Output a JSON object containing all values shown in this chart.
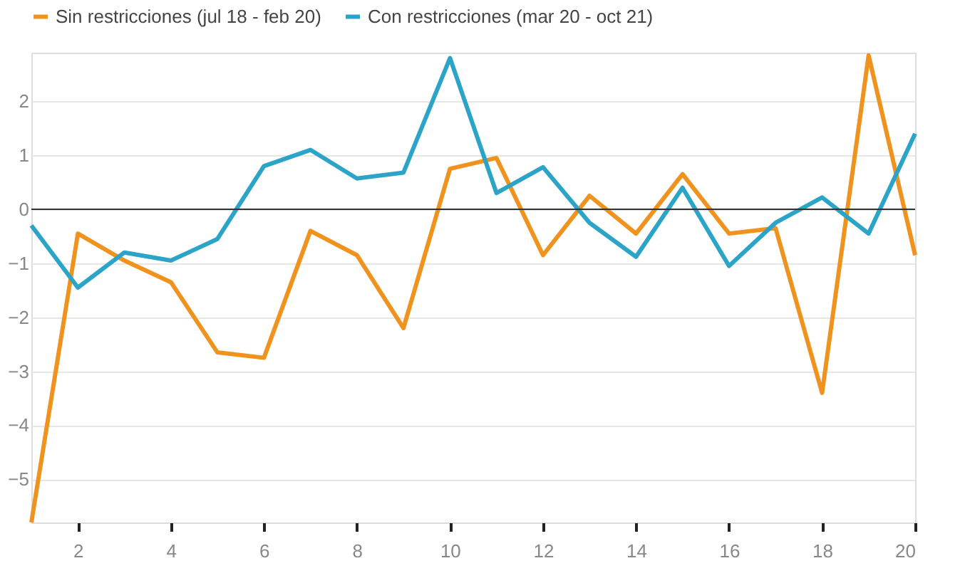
{
  "chart_data": {
    "type": "line",
    "x": [
      1,
      2,
      3,
      4,
      5,
      6,
      7,
      8,
      9,
      10,
      11,
      12,
      13,
      14,
      15,
      16,
      17,
      18,
      19,
      20
    ],
    "series": [
      {
        "name": "Sin restricciones (jul 18 - feb 20)",
        "color": "#f0931e",
        "values": [
          -5.8,
          -0.45,
          -0.95,
          -1.35,
          -2.65,
          -2.75,
          -0.4,
          -0.85,
          -2.2,
          0.75,
          0.95,
          -0.85,
          0.25,
          -0.45,
          0.65,
          -0.45,
          -0.35,
          -3.4,
          2.85,
          -0.85
        ]
      },
      {
        "name": "Con restricciones (mar 20 - oct 21)",
        "color": "#2ca4c7",
        "values": [
          -0.3,
          -1.45,
          -0.8,
          -0.95,
          -0.55,
          0.8,
          1.1,
          0.57,
          0.68,
          2.8,
          0.3,
          0.78,
          -0.25,
          -0.88,
          0.4,
          -1.05,
          -0.25,
          0.22,
          -0.45,
          1.4
        ]
      }
    ],
    "xlim": [
      1,
      20
    ],
    "xticks": [
      2,
      4,
      6,
      8,
      10,
      12,
      14,
      16,
      18,
      20
    ],
    "ylim": [
      -5.8,
      2.9
    ],
    "yticks": [
      -5,
      -4,
      -3,
      -2,
      -1,
      0,
      1,
      2
    ],
    "ref_lines": [
      {
        "axis": "y",
        "value": 0,
        "color": "#333333"
      }
    ],
    "grid": "y",
    "legend": "top left",
    "line_style": "solid"
  }
}
